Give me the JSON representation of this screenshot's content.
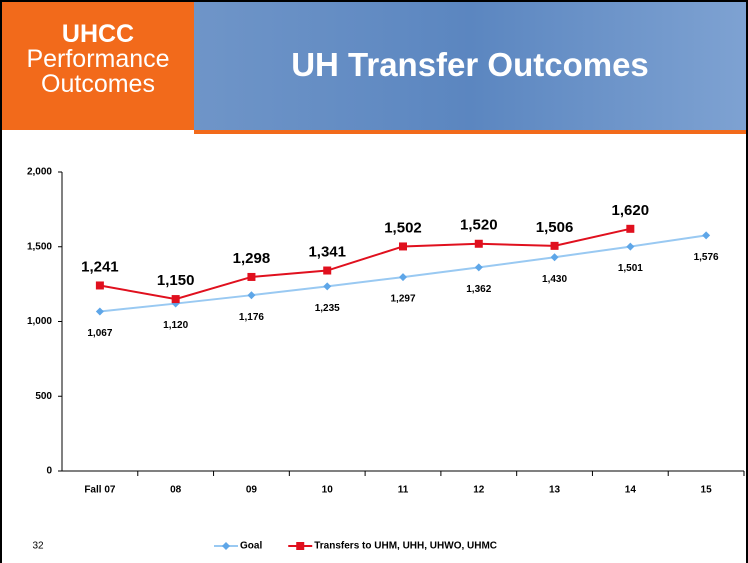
{
  "header": {
    "badge_lines": [
      "UHCC",
      "Performance",
      "Outcomes"
    ],
    "title": "UH Transfer Outcomes"
  },
  "slide_number": "32",
  "chart_data": {
    "type": "line",
    "categories": [
      "Fall 07",
      "08",
      "09",
      "10",
      "11",
      "12",
      "13",
      "14",
      "15"
    ],
    "series": [
      {
        "name": "Goal",
        "color": "#99c9f2",
        "marker_color": "#5ea6e8",
        "marker": "diamond",
        "values": [
          1067,
          1120,
          1176,
          1235,
          1297,
          1362,
          1430,
          1501,
          1576
        ],
        "value_labels": [
          "1,067",
          "1,120",
          "1,176",
          "1,235",
          "1,297",
          "1,362",
          "1,430",
          "1,501",
          "1,576"
        ]
      },
      {
        "name": "Transfers to UHM, UHH, UHWO, UHMC",
        "color": "#e0101e",
        "marker_color": "#e0101e",
        "marker": "square",
        "values": [
          1241,
          1150,
          1298,
          1341,
          1502,
          1520,
          1506,
          1620,
          null
        ],
        "value_labels": [
          "1,241",
          "1,150",
          "1,298",
          "1,341",
          "1,502",
          "1,520",
          "1,506",
          "1,620",
          null
        ]
      }
    ],
    "ylim": [
      0,
      2000
    ],
    "yticks": [
      0,
      500,
      {
        "value": 1000,
        "label": "1,000"
      },
      {
        "value": 1500,
        "label": "1,500"
      },
      {
        "value": 2000,
        "label": "2,000"
      }
    ],
    "grid": false,
    "legend": "bottom"
  }
}
